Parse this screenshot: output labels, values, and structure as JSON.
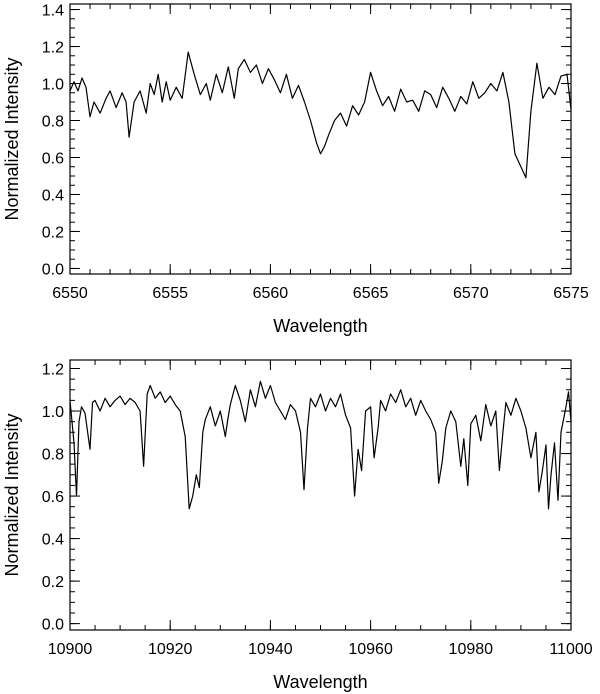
{
  "chart_data": [
    {
      "type": "line",
      "title": "",
      "xlabel": "Wavelength",
      "ylabel": "Normalized Intensity",
      "xlim": [
        6550,
        6575
      ],
      "ylim": [
        -0.03,
        1.43
      ],
      "xticks": [
        6550,
        6555,
        6560,
        6565,
        6570,
        6575
      ],
      "xtick_labels": [
        "6550",
        "6555",
        "6560",
        "6565",
        "6570",
        "6575"
      ],
      "xminor_step": 1,
      "yticks": [
        0.0,
        0.2,
        0.4,
        0.6,
        0.8,
        1.0,
        1.2,
        1.4
      ],
      "ytick_labels": [
        "0.0",
        "0.2",
        "0.4",
        "0.6",
        "0.8",
        "1.0",
        "1.2",
        "1.4"
      ],
      "yminor_step": 0.05,
      "grid": false,
      "series": [
        {
          "x": [
            6550.0,
            6550.2,
            6550.4,
            6550.6,
            6550.8,
            6551.0,
            6551.2,
            6551.5,
            6551.8,
            6552.0,
            6552.3,
            6552.6,
            6552.8,
            6552.95,
            6553.2,
            6553.5,
            6553.8,
            6554.0,
            6554.2,
            6554.4,
            6554.6,
            6554.8,
            6555.0,
            6555.3,
            6555.6,
            6555.9,
            6556.2,
            6556.5,
            6556.8,
            6557.0,
            6557.3,
            6557.6,
            6557.9,
            6558.2,
            6558.4,
            6558.7,
            6559.0,
            6559.3,
            6559.6,
            6559.9,
            6560.2,
            6560.5,
            6560.8,
            6561.1,
            6561.4,
            6561.7,
            6562.0,
            6562.3,
            6562.5,
            6562.7,
            6562.9,
            6563.2,
            6563.5,
            6563.8,
            6564.1,
            6564.4,
            6564.7,
            6565.0,
            6565.3,
            6565.6,
            6565.9,
            6566.2,
            6566.5,
            6566.8,
            6567.1,
            6567.4,
            6567.7,
            6568.0,
            6568.3,
            6568.6,
            6568.9,
            6569.2,
            6569.5,
            6569.8,
            6570.1,
            6570.4,
            6570.7,
            6571.0,
            6571.3,
            6571.6,
            6571.9,
            6572.2,
            6572.5,
            6572.75,
            6573.0,
            6573.3,
            6573.6,
            6573.9,
            6574.2,
            6574.5,
            6574.8,
            6575.0
          ],
          "y": [
            0.96,
            1.01,
            0.96,
            1.03,
            0.98,
            0.82,
            0.9,
            0.84,
            0.92,
            0.96,
            0.87,
            0.95,
            0.9,
            0.71,
            0.9,
            0.96,
            0.84,
            1.0,
            0.94,
            1.05,
            0.9,
            1.01,
            0.91,
            0.98,
            0.92,
            1.17,
            1.05,
            0.94,
            1.0,
            0.91,
            1.05,
            0.95,
            1.09,
            0.92,
            1.08,
            1.13,
            1.06,
            1.1,
            1.0,
            1.08,
            1.02,
            0.95,
            1.05,
            0.92,
            0.99,
            0.9,
            0.8,
            0.68,
            0.62,
            0.66,
            0.72,
            0.8,
            0.84,
            0.77,
            0.88,
            0.83,
            0.9,
            1.06,
            0.96,
            0.88,
            0.93,
            0.85,
            0.97,
            0.9,
            0.91,
            0.85,
            0.96,
            0.94,
            0.87,
            0.98,
            0.92,
            0.85,
            0.93,
            0.89,
            1.01,
            0.92,
            0.95,
            1.0,
            0.96,
            1.06,
            0.9,
            0.62,
            0.55,
            0.49,
            0.85,
            1.11,
            0.92,
            0.98,
            0.94,
            1.04,
            1.05,
            0.86
          ]
        }
      ]
    },
    {
      "type": "line",
      "title": "",
      "xlabel": "Wavelength",
      "ylabel": "Normalized Intensity",
      "xlim": [
        10900,
        11000
      ],
      "ylim": [
        -0.03,
        1.24
      ],
      "xticks": [
        10900,
        10920,
        10940,
        10960,
        10980,
        11000
      ],
      "xtick_labels": [
        "10900",
        "10920",
        "10940",
        "10960",
        "10980",
        "11000"
      ],
      "xminor_step": 5,
      "yticks": [
        0.0,
        0.2,
        0.4,
        0.6,
        0.8,
        1.0,
        1.2
      ],
      "ytick_labels": [
        "0.0",
        "0.2",
        "0.4",
        "0.6",
        "0.8",
        "1.0",
        "1.2"
      ],
      "yminor_step": 0.05,
      "grid": false,
      "series": [
        {
          "x": [
            10900.0,
            10900.8,
            10901.3,
            10901.8,
            10902.3,
            10903.0,
            10904.0,
            10904.5,
            10905.0,
            10906.0,
            10907.0,
            10908.0,
            10909.0,
            10910.0,
            10911.0,
            10912.0,
            10913.0,
            10914.0,
            10914.7,
            10915.4,
            10916.0,
            10917.0,
            10918.0,
            10919.0,
            10920.0,
            10921.0,
            10922.0,
            10923.0,
            10923.8,
            10924.5,
            10925.2,
            10925.8,
            10926.5,
            10927.0,
            10928.0,
            10929.0,
            10930.0,
            10931.0,
            10931.5,
            10932.0,
            10933.0,
            10934.0,
            10935.0,
            10936.0,
            10937.0,
            10938.0,
            10939.0,
            10940.0,
            10941.0,
            10942.0,
            10943.0,
            10944.0,
            10945.0,
            10946.0,
            10946.7,
            10947.4,
            10948.0,
            10949.0,
            10950.0,
            10951.0,
            10952.0,
            10953.0,
            10954.0,
            10955.0,
            10956.0,
            10956.8,
            10957.5,
            10958.2,
            10959.0,
            10960.0,
            10960.7,
            10961.5,
            10962.0,
            10963.0,
            10964.0,
            10965.0,
            10966.0,
            10967.0,
            10968.0,
            10969.0,
            10970.0,
            10971.0,
            10972.0,
            10973.0,
            10973.6,
            10974.3,
            10975.0,
            10976.0,
            10977.0,
            10978.0,
            10978.6,
            10979.4,
            10980.0,
            10981.0,
            10982.0,
            10983.0,
            10984.0,
            10985.0,
            10985.7,
            10986.4,
            10987.0,
            10988.0,
            10989.0,
            10990.0,
            10991.0,
            10992.0,
            10993.0,
            10993.6,
            10994.3,
            10995.0,
            10995.5,
            10996.0,
            10996.7,
            10997.4,
            10998.0,
            10999.0,
            10999.5,
            11000.0
          ],
          "y": [
            1.05,
            0.85,
            0.6,
            0.95,
            1.02,
            0.99,
            0.82,
            1.04,
            1.05,
            1.0,
            1.06,
            1.02,
            1.05,
            1.07,
            1.03,
            1.06,
            1.04,
            1.0,
            0.74,
            1.08,
            1.12,
            1.06,
            1.09,
            1.04,
            1.07,
            1.03,
            1.0,
            0.88,
            0.54,
            0.6,
            0.7,
            0.64,
            0.9,
            0.96,
            1.02,
            0.93,
            1.0,
            0.88,
            0.96,
            1.03,
            1.12,
            1.05,
            0.95,
            1.1,
            1.02,
            1.14,
            1.06,
            1.12,
            1.04,
            1.0,
            0.96,
            1.03,
            1.0,
            0.9,
            0.63,
            0.92,
            1.06,
            1.02,
            1.08,
            1.0,
            1.06,
            1.02,
            1.08,
            0.98,
            0.92,
            0.6,
            0.82,
            0.72,
            1.0,
            1.02,
            0.78,
            0.92,
            1.05,
            1.0,
            1.08,
            1.04,
            1.1,
            1.02,
            1.06,
            0.98,
            1.05,
            1.0,
            0.96,
            0.9,
            0.66,
            0.76,
            0.92,
            1.0,
            0.95,
            0.74,
            0.87,
            0.65,
            0.94,
            0.98,
            0.86,
            1.03,
            0.93,
            1.0,
            0.72,
            0.9,
            1.04,
            0.98,
            1.06,
            1.0,
            0.92,
            0.78,
            0.9,
            0.62,
            0.72,
            0.84,
            0.54,
            0.7,
            0.85,
            0.58,
            0.9,
            1.02,
            1.09,
            0.95
          ]
        }
      ]
    }
  ]
}
